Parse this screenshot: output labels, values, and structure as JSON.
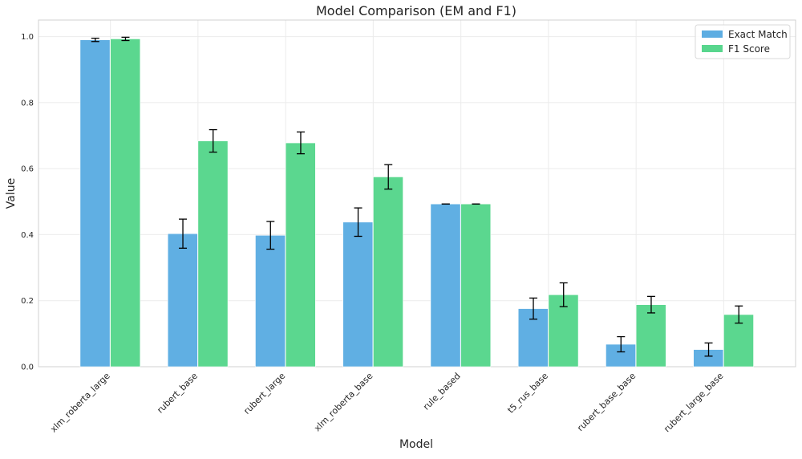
{
  "chart_data": {
    "type": "bar",
    "title": "Model Comparison (EM and F1)",
    "xlabel": "Model",
    "ylabel": "Value",
    "ylim": [
      0,
      1.05
    ],
    "yticks": [
      0.0,
      0.2,
      0.4,
      0.6,
      0.8,
      1.0
    ],
    "ytick_labels": [
      "0.0",
      "0.2",
      "0.4",
      "0.6",
      "0.8",
      "1.0"
    ],
    "grid": true,
    "legend_position": "top-right",
    "categories": [
      "xlm_roberta_large",
      "rubert_base",
      "rubert_large",
      "xlm_roberta_base",
      "rule_based",
      "t5_rus_base",
      "rubert_base_base",
      "rubert_large_base"
    ],
    "series": [
      {
        "name": "Exact Match",
        "color": "#5DADE2",
        "values": [
          0.99,
          0.403,
          0.398,
          0.438,
          0.493,
          0.176,
          0.068,
          0.052
        ],
        "errors": [
          0.005,
          0.044,
          0.042,
          0.043,
          0.0,
          0.032,
          0.023,
          0.02
        ]
      },
      {
        "name": "F1 Score",
        "color": "#58D68D",
        "values": [
          0.993,
          0.684,
          0.678,
          0.575,
          0.493,
          0.218,
          0.188,
          0.158
        ],
        "errors": [
          0.005,
          0.034,
          0.033,
          0.037,
          0.0,
          0.036,
          0.025,
          0.026
        ]
      }
    ]
  }
}
